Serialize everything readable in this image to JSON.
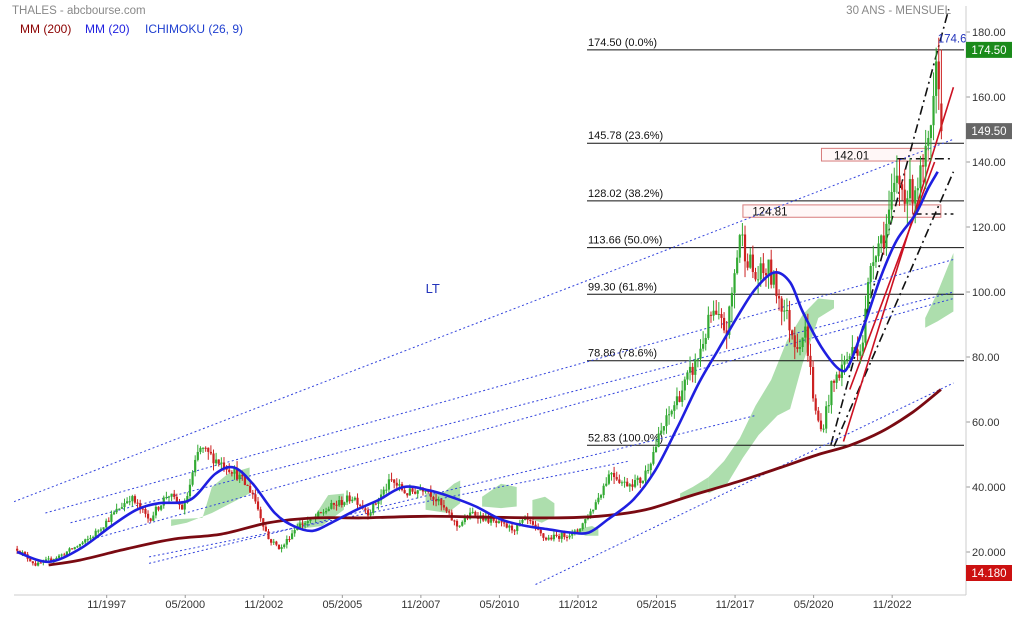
{
  "header": {
    "symbol_source": "THALES - abcbourse.com",
    "period": "30 ANS - MENSUEL"
  },
  "legend": [
    {
      "label": "MM (200)",
      "color": "#8b0000"
    },
    {
      "label": "MM (20)",
      "color": "#1f1fe0"
    },
    {
      "label": "ICHIMOKU (26, 9)",
      "color": "#2040d0"
    }
  ],
  "colors": {
    "up_candle": "#33aa33",
    "down_candle": "#cc2222",
    "ma200": "#7a0a12",
    "ma20": "#1f1fe0",
    "cloud": "#9fd89f",
    "trend_red": "#cc1122",
    "channel_blue": "#3344dd",
    "last_price_badge": "#1a8a1a",
    "prev_price_badge": "#666666",
    "low_price_badge": "#cc1111"
  },
  "chart_data": {
    "type": "candlestick",
    "title": "THALES - abcbourse.com",
    "subtitle": "30 ANS - MENSUEL",
    "y_axis": {
      "min": 10,
      "max": 188,
      "ticks": [
        "20.000",
        "40.000",
        "60.00",
        "80.00",
        "100.00",
        "120.00",
        "140.00",
        "160.00",
        "180.00"
      ],
      "tick_values": [
        20,
        40,
        60,
        80,
        100,
        120,
        140,
        160,
        180
      ]
    },
    "x_axis": {
      "start": 1994.9,
      "end": 2025.2,
      "ticks": [
        "11/1997",
        "05/2000",
        "11/2002",
        "05/2005",
        "11/2007",
        "05/2010",
        "11/2012",
        "05/2015",
        "11/2017",
        "05/2020",
        "11/2022"
      ],
      "tick_values": [
        1997.85,
        2000.35,
        2002.85,
        2005.35,
        2007.85,
        2010.35,
        2012.85,
        2015.35,
        2017.85,
        2020.35,
        2022.85
      ]
    },
    "price_badges": [
      {
        "label": "174.50",
        "value": 174.5
      },
      {
        "label": "149.50",
        "value": 149.5
      },
      {
        "label": "14.180",
        "value": 14.18
      }
    ],
    "fibonacci_levels": [
      {
        "label": "174.50  (0.0%)",
        "value": 174.5
      },
      {
        "label": "145.78  (23.6%)",
        "value": 145.78
      },
      {
        "label": "128.02  (38.2%)",
        "value": 128.02
      },
      {
        "label": "113.66  (50.0%)",
        "value": 113.66
      },
      {
        "label": "99.30  (61.8%)",
        "value": 99.3
      },
      {
        "label": "78.86  (78.6%)",
        "value": 78.86
      },
      {
        "label": "52.83  (100.0%)",
        "value": 52.83
      }
    ],
    "annotations": [
      {
        "label": "174.6",
        "x": 2024.3,
        "y": 178
      },
      {
        "label": "142.01",
        "x": 2021.0,
        "y": 142.0
      },
      {
        "label": "124.81",
        "x": 2018.4,
        "y": 124.8
      },
      {
        "label": "LT",
        "x": 2008.0,
        "y": 101
      }
    ],
    "resistance_zones": [
      {
        "label": "142.01",
        "x_start": 2020.6,
        "x_end": 2024.0,
        "y_low": 140.3,
        "y_high": 144.2
      },
      {
        "label": "124.81",
        "x_start": 2018.1,
        "x_end": 2024.4,
        "y_low": 123.0,
        "y_high": 126.8
      }
    ],
    "ma20": [
      [
        1995.0,
        20
      ],
      [
        1996.0,
        17
      ],
      [
        1997.0,
        21
      ],
      [
        1998.0,
        28
      ],
      [
        1998.8,
        33
      ],
      [
        1999.5,
        35
      ],
      [
        2000.5,
        36
      ],
      [
        2001.3,
        44
      ],
      [
        2001.9,
        46
      ],
      [
        2002.5,
        41
      ],
      [
        2003.2,
        32
      ],
      [
        2003.8,
        28
      ],
      [
        2004.4,
        26.5
      ],
      [
        2005.0,
        29
      ],
      [
        2005.8,
        33
      ],
      [
        2006.5,
        36
      ],
      [
        2007.3,
        40
      ],
      [
        2008.1,
        39
      ],
      [
        2008.8,
        37
      ],
      [
        2009.6,
        34
      ],
      [
        2010.4,
        30
      ],
      [
        2011.2,
        28
      ],
      [
        2011.9,
        27
      ],
      [
        2012.6,
        26
      ],
      [
        2013.2,
        26
      ],
      [
        2013.8,
        30
      ],
      [
        2014.6,
        36
      ],
      [
        2015.3,
        45
      ],
      [
        2016.0,
        58
      ],
      [
        2016.7,
        72
      ],
      [
        2017.3,
        82
      ],
      [
        2017.9,
        92
      ],
      [
        2018.5,
        101
      ],
      [
        2019.1,
        106
      ],
      [
        2019.6,
        103
      ],
      [
        2020.0,
        94
      ],
      [
        2020.6,
        83
      ],
      [
        2021.2,
        76
      ],
      [
        2021.5,
        78
      ],
      [
        2022.0,
        91
      ],
      [
        2022.5,
        105
      ],
      [
        2023.0,
        116
      ],
      [
        2023.6,
        124
      ],
      [
        2024.0,
        132
      ],
      [
        2024.3,
        137
      ]
    ],
    "ma200": [
      [
        1996.0,
        16
      ],
      [
        1997.0,
        17.5
      ],
      [
        1998.5,
        21
      ],
      [
        2000.0,
        24
      ],
      [
        2001.5,
        25.5
      ],
      [
        2003.0,
        29
      ],
      [
        2004.5,
        30.5
      ],
      [
        2006.0,
        30.5
      ],
      [
        2008.0,
        31
      ],
      [
        2010.0,
        30.7
      ],
      [
        2012.0,
        30.5
      ],
      [
        2013.5,
        31
      ],
      [
        2015.0,
        33
      ],
      [
        2016.5,
        37.5
      ],
      [
        2017.9,
        41.5
      ],
      [
        2019.3,
        46
      ],
      [
        2020.5,
        50
      ],
      [
        2021.5,
        52.8
      ],
      [
        2022.5,
        57
      ],
      [
        2023.5,
        63
      ],
      [
        2024.4,
        70
      ]
    ],
    "cloud": [
      [
        [
          1999.9,
          30
        ],
        [
          2000.9,
          30.5
        ],
        [
          2001.2,
          40
        ],
        [
          2001.7,
          44
        ],
        [
          2002.4,
          46
        ],
        [
          2002.4,
          38
        ],
        [
          2001.8,
          35
        ],
        [
          2001.2,
          32
        ],
        [
          2000.4,
          29
        ],
        [
          1999.9,
          28
        ]
      ],
      [
        [
          2003.9,
          29
        ],
        [
          2004.4,
          30
        ],
        [
          2004.9,
          37.5
        ],
        [
          2005.4,
          38
        ],
        [
          2005.4,
          33
        ],
        [
          2004.7,
          28
        ],
        [
          2003.9,
          27
        ]
      ],
      [
        [
          2008.0,
          38
        ],
        [
          2008.6,
          38.5
        ],
        [
          2008.9,
          41
        ],
        [
          2009.1,
          42
        ],
        [
          2009.1,
          35
        ],
        [
          2008.7,
          32
        ],
        [
          2008.0,
          33
        ]
      ],
      [
        [
          2009.8,
          37
        ],
        [
          2010.4,
          41
        ],
        [
          2010.9,
          40
        ],
        [
          2010.9,
          34
        ],
        [
          2010.4,
          33.5
        ],
        [
          2009.8,
          34
        ]
      ],
      [
        [
          2011.4,
          36
        ],
        [
          2011.8,
          37
        ],
        [
          2012.1,
          35
        ],
        [
          2012.1,
          31
        ],
        [
          2011.7,
          29
        ],
        [
          2011.4,
          30
        ]
      ],
      [
        [
          2012.8,
          27
        ],
        [
          2013.3,
          28
        ],
        [
          2013.5,
          27
        ],
        [
          2013.5,
          25
        ],
        [
          2013.1,
          25
        ],
        [
          2012.8,
          26
        ]
      ],
      [
        [
          2016.1,
          38
        ],
        [
          2016.5,
          40
        ],
        [
          2017.0,
          43
        ],
        [
          2017.0,
          39
        ],
        [
          2016.5,
          37
        ],
        [
          2016.1,
          36
        ]
      ],
      [
        [
          2017.0,
          43
        ],
        [
          2017.5,
          48
        ],
        [
          2018.0,
          55
        ],
        [
          2018.5,
          65
        ],
        [
          2019.0,
          73
        ],
        [
          2019.5,
          85
        ],
        [
          2020.0,
          93
        ],
        [
          2020.5,
          98
        ],
        [
          2021.0,
          97.5
        ],
        [
          2021.0,
          95
        ],
        [
          2020.5,
          92
        ],
        [
          2020.3,
          86
        ],
        [
          2020.0,
          78
        ],
        [
          2019.6,
          64
        ],
        [
          2019.2,
          62
        ],
        [
          2018.6,
          56
        ],
        [
          2018.1,
          49
        ],
        [
          2017.6,
          41
        ],
        [
          2017.0,
          38
        ]
      ],
      [
        [
          2023.9,
          92
        ],
        [
          2024.3,
          100
        ],
        [
          2024.8,
          112
        ],
        [
          2024.8,
          94
        ],
        [
          2024.3,
          91
        ],
        [
          2023.9,
          89
        ]
      ]
    ],
    "trend_lines": [
      {
        "style": "dashdot_black",
        "points": [
          [
            2020.9,
            53
          ],
          [
            2024.65,
            187
          ]
        ]
      },
      {
        "style": "dashdot_black",
        "points": [
          [
            2021.0,
            52.5
          ],
          [
            2024.8,
            137
          ]
        ]
      },
      {
        "style": "dashdot_black",
        "points": [
          [
            2023.0,
            141
          ],
          [
            2024.8,
            141
          ]
        ]
      },
      {
        "style": "dashdot_black",
        "points": [
          [
            2023.5,
            124
          ],
          [
            2024.8,
            124
          ]
        ]
      },
      {
        "style": "solid_red",
        "points": [
          [
            2021.3,
            54
          ],
          [
            2024.8,
            163
          ]
        ]
      },
      {
        "style": "solid_red",
        "points": [
          [
            2021.5,
            70
          ],
          [
            2024.2,
            140
          ]
        ]
      },
      {
        "style": "dotted_blue",
        "points": [
          [
            1994.9,
            35.5
          ],
          [
            2024.8,
            147
          ]
        ]
      },
      {
        "style": "dotted_blue",
        "points": [
          [
            1995.9,
            32
          ],
          [
            2024.8,
            110
          ]
        ]
      },
      {
        "style": "dotted_blue",
        "points": [
          [
            1996.7,
            29
          ],
          [
            2024.8,
            100
          ]
        ]
      },
      {
        "style": "dotted_blue",
        "points": [
          [
            1997.4,
            24
          ],
          [
            2024.8,
            98
          ]
        ]
      },
      {
        "style": "dotted_blue",
        "points": [
          [
            2011.5,
            10
          ],
          [
            2024.8,
            72
          ]
        ]
      },
      {
        "style": "dotted_blue",
        "points": [
          [
            1999.2,
            16.5
          ],
          [
            2018.5,
            62
          ]
        ]
      },
      {
        "style": "dotted_blue",
        "points": [
          [
            1999.2,
            18.5
          ],
          [
            2014.5,
            48
          ]
        ]
      }
    ],
    "price_anchors": [
      [
        1995.0,
        21
      ],
      [
        1995.6,
        16
      ],
      [
        1996.4,
        19
      ],
      [
        1997.3,
        24
      ],
      [
        1998.0,
        31
      ],
      [
        1998.6,
        37
      ],
      [
        1999.2,
        30
      ],
      [
        1999.8,
        38
      ],
      [
        2000.3,
        33
      ],
      [
        2000.8,
        52
      ],
      [
        2001.4,
        48
      ],
      [
        2001.9,
        45
      ],
      [
        2002.5,
        38
      ],
      [
        2003.0,
        24
      ],
      [
        2003.4,
        21
      ],
      [
        2003.9,
        28
      ],
      [
        2004.4,
        30
      ],
      [
        2005.0,
        34
      ],
      [
        2005.7,
        37
      ],
      [
        2006.2,
        32
      ],
      [
        2006.9,
        42
      ],
      [
        2007.4,
        38
      ],
      [
        2008.0,
        40
      ],
      [
        2008.6,
        33
      ],
      [
        2009.0,
        28
      ],
      [
        2009.5,
        32
      ],
      [
        2010.2,
        29
      ],
      [
        2010.8,
        27
      ],
      [
        2011.2,
        30
      ],
      [
        2011.8,
        24
      ],
      [
        2012.3,
        25
      ],
      [
        2012.8,
        26
      ],
      [
        2013.3,
        33
      ],
      [
        2013.9,
        45
      ],
      [
        2014.3,
        41
      ],
      [
        2014.9,
        42
      ],
      [
        2015.5,
        57
      ],
      [
        2016.0,
        67
      ],
      [
        2016.6,
        78
      ],
      [
        2017.1,
        93
      ],
      [
        2017.6,
        88
      ],
      [
        2018.0,
        118
      ],
      [
        2018.5,
        104
      ],
      [
        2018.9,
        107
      ],
      [
        2019.4,
        95
      ],
      [
        2019.8,
        84
      ],
      [
        2020.1,
        88
      ],
      [
        2020.4,
        63
      ],
      [
        2020.6,
        57
      ],
      [
        2020.9,
        70
      ],
      [
        2021.3,
        78
      ],
      [
        2021.6,
        82
      ],
      [
        2021.9,
        84
      ],
      [
        2022.2,
        112
      ],
      [
        2022.6,
        118
      ],
      [
        2023.0,
        134
      ],
      [
        2023.4,
        130
      ],
      [
        2023.8,
        136
      ],
      [
        2024.1,
        148
      ],
      [
        2024.3,
        172
      ],
      [
        2024.45,
        149.5
      ]
    ]
  }
}
